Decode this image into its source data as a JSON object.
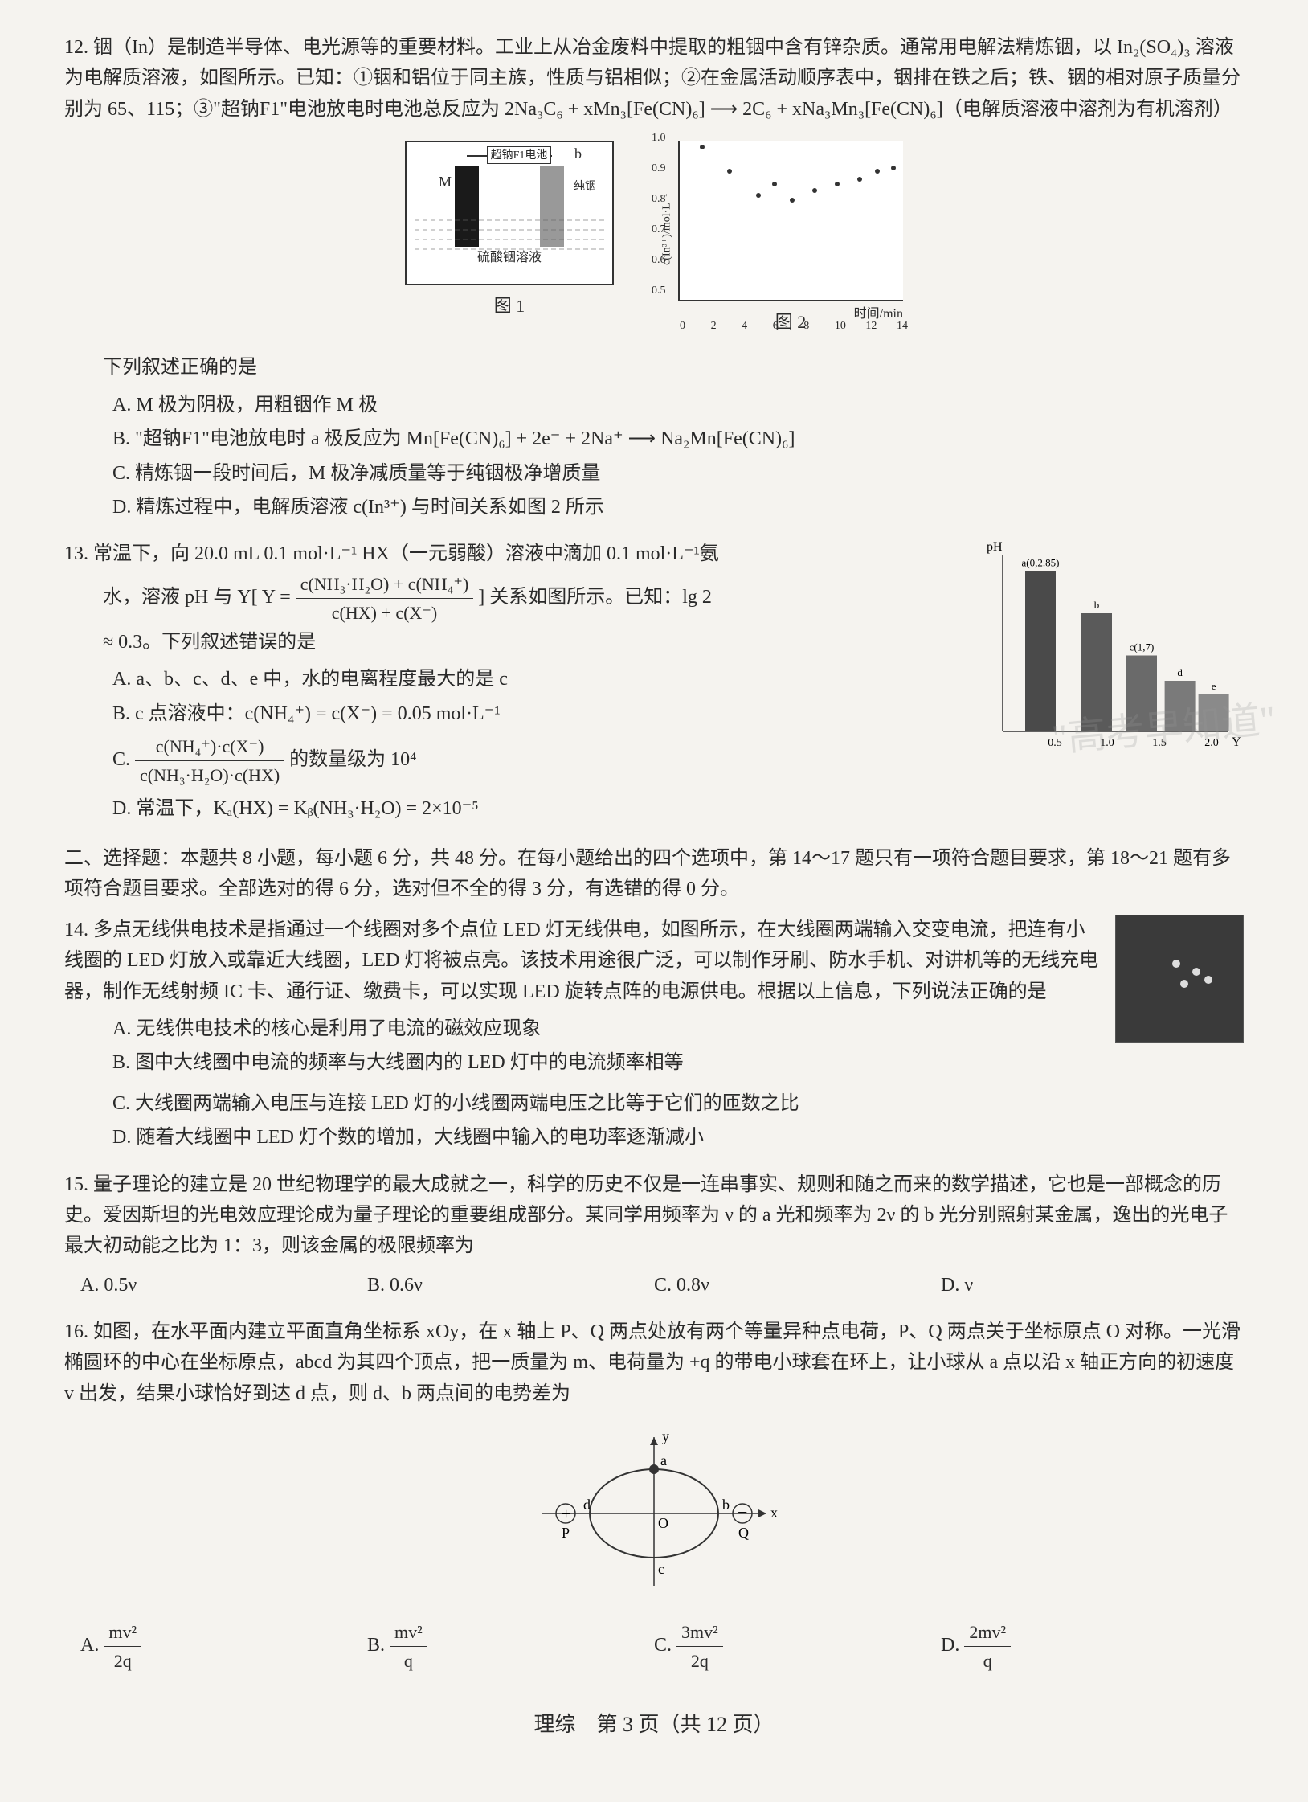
{
  "q12": {
    "number": "12.",
    "intro": "铟（In）是制造半导体、电光源等的重要材料。工业上从冶金废料中提取的粗铟中含有锌杂质。通常用电解法精炼铟，以 In₂(SO₄)₃ 溶液为电解质溶液，如图所示。已知：①铟和铝位于同主族，性质与铝相似；②在金属活动顺序表中，铟排在铁之后；铁、铟的相对原子质量分别为 65、115；③\"超钠F1\"电池放电时电池总反应为 2Na₃C₆ + xMn₃[Fe(CN)₆] ⟶ 2C₆ + xNa₃Mn₃[Fe(CN)₆]（电解质溶液中溶剂为有机溶剂）",
    "fig1_battery": "超钠F1电池",
    "fig1_m": "M",
    "fig1_b": "b",
    "fig1_anode": "纯铟",
    "fig1_solution": "硫酸铟溶液",
    "fig1_label": "图 1",
    "fig2_ylabel": "c(In³⁺)/mol·L⁻¹",
    "fig2_xlabel": "时间/min",
    "fig2_label": "图 2",
    "fig2_yticks": [
      "0.5",
      "0.6",
      "0.7",
      "0.8",
      "0.9",
      "1.0"
    ],
    "fig2_xticks": [
      "0",
      "2",
      "4",
      "6",
      "8",
      "10",
      "12",
      "14"
    ],
    "fig2_points": [
      {
        "x": 0.1,
        "y": 0.95
      },
      {
        "x": 0.22,
        "y": 0.8
      },
      {
        "x": 0.35,
        "y": 0.65
      },
      {
        "x": 0.42,
        "y": 0.72
      },
      {
        "x": 0.5,
        "y": 0.62
      },
      {
        "x": 0.6,
        "y": 0.68
      },
      {
        "x": 0.7,
        "y": 0.72
      },
      {
        "x": 0.8,
        "y": 0.75
      },
      {
        "x": 0.88,
        "y": 0.8
      },
      {
        "x": 0.95,
        "y": 0.82
      }
    ],
    "stem": "下列叙述正确的是",
    "opts": {
      "A": "A. M 极为阴极，用粗铟作 M 极",
      "B": "B. \"超钠F1\"电池放电时 a 极反应为 Mn[Fe(CN)₆] + 2e⁻ + 2Na⁺ ⟶ Na₂Mn[Fe(CN)₆]",
      "C": "C. 精炼铟一段时间后，M 极净减质量等于纯铟极净增质量",
      "D": "D. 精炼过程中，电解质溶液 c(In³⁺) 与时间关系如图 2 所示"
    }
  },
  "q13": {
    "number": "13.",
    "intro": "常温下，向 20.0 mL 0.1 mol·L⁻¹ HX（一元弱酸）溶液中滴加 0.1 mol·L⁻¹氨",
    "intro2_pre": "水，溶液 pH 与 Y[ Y =",
    "frac1_num": "c(NH₃·H₂O) + c(NH₄⁺)",
    "frac1_den": "c(HX) + c(X⁻)",
    "intro2_post": "] 关系如图所示。已知：lg 2",
    "intro3": "≈ 0.3。下列叙述错误的是",
    "opts": {
      "A": "A. a、b、c、d、e 中，水的电离程度最大的是 c",
      "B_pre": "B. c 点溶液中：c(NH₄⁺) = c(X⁻) = 0.05 mol·L⁻¹",
      "C_pre": "C.",
      "C_num": "c(NH₄⁺)·c(X⁻)",
      "C_den": "c(NH₃·H₂O)·c(HX)",
      "C_post": "的数量级为 10⁴",
      "D": "D. 常温下，Kₐ(HX) = Kᵦ(NH₃·H₂O) = 2×10⁻⁵"
    },
    "chart": {
      "ylabel": "pH",
      "y_top": "0",
      "bars": [
        {
          "label": "a(0,2.85)",
          "h": 0.95,
          "x": 0.1,
          "color": "#4a4a4a"
        },
        {
          "label": "b",
          "h": 0.7,
          "x": 0.35,
          "color": "#5a5a5a"
        },
        {
          "label": "c(1,7)",
          "h": 0.45,
          "x": 0.55,
          "color": "#6a6a6a"
        },
        {
          "label": "d",
          "h": 0.3,
          "x": 0.72,
          "color": "#7a7a7a"
        },
        {
          "label": "e",
          "h": 0.22,
          "x": 0.87,
          "color": "#8a8a8a"
        }
      ],
      "xticks": [
        "0.5",
        "1.0",
        "1.5",
        "2.0"
      ],
      "xlabel": "Y"
    }
  },
  "section2": "二、选择题：本题共 8 小题，每小题 6 分，共 48 分。在每小题给出的四个选项中，第 14～17 题只有一项符合题目要求，第 18～21 题有多项符合题目要求。全部选对的得 6 分，选对但不全的得 3 分，有选错的得 0 分。",
  "q14": {
    "number": "14.",
    "text": "多点无线供电技术是指通过一个线圈对多个点位 LED 灯无线供电，如图所示，在大线圈两端输入交变电流，把连有小线圈的 LED 灯放入或靠近大线圈，LED 灯将被点亮。该技术用途很广泛，可以制作牙刷、防水手机、对讲机等的无线充电器，制作无线射频 IC 卡、通行证、缴费卡，可以实现 LED 旋转点阵的电源供电。根据以上信息，下列说法正确的是",
    "opts": {
      "A": "A. 无线供电技术的核心是利用了电流的磁效应现象",
      "B": "B. 图中大线圈中电流的频率与大线圈内的 LED 灯中的电流频率相等",
      "C": "C. 大线圈两端输入电压与连接 LED 灯的小线圈两端电压之比等于它们的匝数之比",
      "D": "D. 随着大线圈中 LED 灯个数的增加，大线圈中输入的电功率逐渐减小"
    }
  },
  "q15": {
    "number": "15.",
    "text": "量子理论的建立是 20 世纪物理学的最大成就之一，科学的历史不仅是一连串事实、规则和随之而来的数学描述，它也是一部概念的历史。爱因斯坦的光电效应理论成为量子理论的重要组成部分。某同学用频率为 ν 的 a 光和频率为 2ν 的 b 光分别照射某金属，逸出的光电子最大初动能之比为 1：3，则该金属的极限频率为",
    "opts": {
      "A": "A. 0.5ν",
      "B": "B. 0.6ν",
      "C": "C. 0.8ν",
      "D": "D. ν"
    }
  },
  "q16": {
    "number": "16.",
    "text": "如图，在水平面内建立平面直角坐标系 xOy，在 x 轴上 P、Q 两点处放有两个等量异种点电荷，P、Q 两点关于坐标原点 O 对称。一光滑椭圆环的中心在坐标原点，abcd 为其四个顶点，把一质量为 m、电荷量为 +q 的带电小球套在环上，让小球从 a 点以沿 x 轴正方向的初速度 v 出发，结果小球恰好到达 d 点，则 d、b 两点间的电势差为",
    "diagram": {
      "y": "y",
      "x": "x",
      "a": "a",
      "b": "b",
      "c": "c",
      "d": "d",
      "O": "O",
      "P": "P",
      "Q": "Q",
      "plus": "+",
      "minus": "−"
    },
    "opts": {
      "A_pre": "A.",
      "A_num": "mv²",
      "A_den": "2q",
      "B_pre": "B.",
      "B_num": "mv²",
      "B_den": "q",
      "C_pre": "C.",
      "C_num": "3mv²",
      "C_den": "2q",
      "D_pre": "D.",
      "D_num": "2mv²",
      "D_den": "q"
    }
  },
  "watermark": "\"高考早知道\"",
  "footer": "理综　第 3 页（共 12 页）"
}
